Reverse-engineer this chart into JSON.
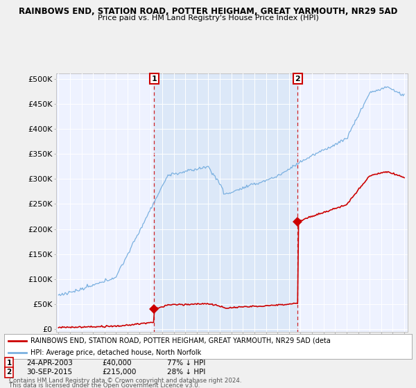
{
  "title": "RAINBOWS END, STATION ROAD, POTTER HEIGHAM, GREAT YARMOUTH, NR29 5AD",
  "subtitle": "Price paid vs. HM Land Registry's House Price Index (HPI)",
  "ylabel_ticks": [
    "£0",
    "£50K",
    "£100K",
    "£150K",
    "£200K",
    "£250K",
    "£300K",
    "£350K",
    "£400K",
    "£450K",
    "£500K"
  ],
  "ytick_vals": [
    0,
    50000,
    100000,
    150000,
    200000,
    250000,
    300000,
    350000,
    400000,
    450000,
    500000
  ],
  "year_start": 1995,
  "year_end": 2025,
  "bg_color": "#f0f0f0",
  "plot_bg_color": "#eef2ff",
  "shade_color": "#dce8f8",
  "hpi_color": "#7ab0e0",
  "price_color": "#cc0000",
  "transaction1_date": 2003.31,
  "transaction1_price": 40000,
  "transaction2_date": 2015.75,
  "transaction2_price": 215000,
  "legend_line1": "RAINBOWS END, STATION ROAD, POTTER HEIGHAM, GREAT YARMOUTH, NR29 5AD (deta",
  "legend_line2": "HPI: Average price, detached house, North Norfolk",
  "footer1": "Contains HM Land Registry data © Crown copyright and database right 2024.",
  "footer2": "This data is licensed under the Open Government Licence v3.0.",
  "note1_num": "1",
  "note1_date": "24-APR-2003",
  "note1_price": "£40,000",
  "note1_hpi": "77% ↓ HPI",
  "note2_num": "2",
  "note2_date": "30-SEP-2015",
  "note2_price": "£215,000",
  "note2_hpi": "28% ↓ HPI"
}
